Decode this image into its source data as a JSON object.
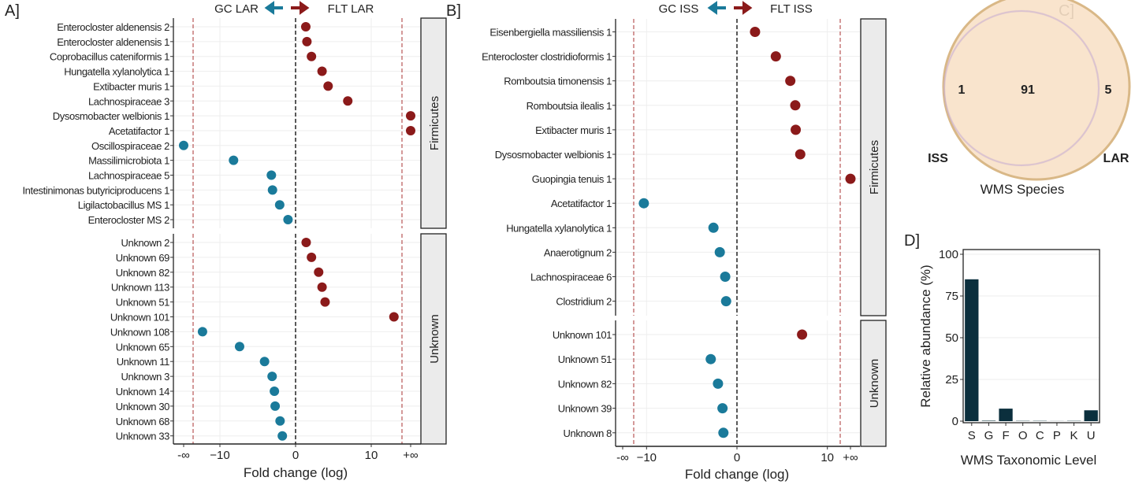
{
  "colors": {
    "flt": "#8b1a1a",
    "gc": "#1a7a9a",
    "bar": "#0b2f3d",
    "venn_lar": "#f8e1c8",
    "venn_lar_stroke": "#d9b887",
    "venn_iss_stroke": "#c9b3d6"
  },
  "chart_data": [
    {
      "panel": "A]",
      "type": "scatter",
      "title_left": "GC LAR",
      "title_right": "FLT LAR",
      "xlabel": "Fold change (log)",
      "x_ticks": [
        "-∞",
        "−10",
        "0",
        "10",
        "+∞"
      ],
      "x_tick_values": [
        "-inf",
        -10,
        0,
        10,
        "+inf"
      ],
      "facets": [
        {
          "name": "Firmicutes",
          "items": [
            [
              "Enterocloster aldenensis 2",
              1.35
            ],
            [
              "Enterocloster aldenensis 1",
              1.5
            ],
            [
              "Coprobacillus cateniformis 1",
              2.1
            ],
            [
              "Hungatella xylanolytica 1",
              3.5
            ],
            [
              "Extibacter muris 1",
              4.3
            ],
            [
              "Lachnospiraceae 3",
              6.9
            ],
            [
              "Dysosmobacter welbionis 1",
              "+inf"
            ],
            [
              "Acetatifactor 1",
              "+inf"
            ],
            [
              "Oscillospiraceae 2",
              "-inf"
            ],
            [
              "Massilimicrobiota 1",
              -8.2
            ],
            [
              "Lachnospiraceae 5",
              -3.2
            ],
            [
              "Intestinimonas butyriciproducens 1",
              -3.05
            ],
            [
              "Ligilactobacillus MS 1",
              -2.1
            ],
            [
              "Enterocloster MS 2",
              -1.0
            ]
          ]
        },
        {
          "name": "Unknown",
          "items": [
            [
              "Unknown 2",
              1.4
            ],
            [
              "Unknown 69",
              2.1
            ],
            [
              "Unknown 82",
              3.05
            ],
            [
              "Unknown 113",
              3.5
            ],
            [
              "Unknown 51",
              3.9
            ],
            [
              "Unknown 101",
              13.0
            ],
            [
              "Unknown 108",
              -12.3
            ],
            [
              "Unknown 65",
              -7.4
            ],
            [
              "Unknown 11",
              -4.1
            ],
            [
              "Unknown 3",
              -3.1
            ],
            [
              "Unknown 14",
              -2.8
            ],
            [
              "Unknown 30",
              -2.7
            ],
            [
              "Unknown 68",
              -2.05
            ],
            [
              "Unknown 33",
              -1.75
            ]
          ]
        }
      ]
    },
    {
      "panel": "B]",
      "type": "scatter",
      "title_left": "GC ISS",
      "title_right": "FLT ISS",
      "xlabel": "Fold change (log)",
      "x_ticks": [
        "-∞",
        "−10",
        "0",
        "10",
        "+∞"
      ],
      "x_tick_values": [
        "-inf",
        -10,
        0,
        10,
        "+inf"
      ],
      "facets": [
        {
          "name": "Firmicutes",
          "items": [
            [
              "Eisenbergiella massiliensis 1",
              2.0
            ],
            [
              "Enterocloster clostridioformis 1",
              4.3
            ],
            [
              "Romboutsia timonensis 1",
              5.9
            ],
            [
              "Romboutsia ilealis 1",
              6.45
            ],
            [
              "Extibacter muris 1",
              6.5
            ],
            [
              "Dysosmobacter welbionis 1",
              7.0
            ],
            [
              "Guopingia tenuis  1",
              "+inf"
            ],
            [
              "Acetatifactor 1",
              -10.3
            ],
            [
              "Hungatella xylanolytica 1",
              -2.6
            ],
            [
              "Anaerotignum 2",
              -1.9
            ],
            [
              "Lachnospiraceae 6",
              -1.3
            ],
            [
              "Clostridium 2",
              -1.2
            ]
          ]
        },
        {
          "name": "Unknown",
          "items": [
            [
              "Unknown 101",
              7.2
            ],
            [
              "Unknown 51",
              -2.9
            ],
            [
              "Unknown 82",
              -2.1
            ],
            [
              "Unknown 39",
              -1.6
            ],
            [
              "Unknown 8",
              -1.5
            ]
          ]
        }
      ]
    },
    {
      "panel": "C]",
      "type": "venn",
      "sets": [
        {
          "name": "ISS",
          "only": 1
        },
        {
          "name": "LAR",
          "only": 5
        }
      ],
      "shared": 91,
      "caption": "WMS Species"
    },
    {
      "panel": "D]",
      "type": "bar",
      "categories": [
        "S",
        "G",
        "F",
        "O",
        "C",
        "P",
        "K",
        "U"
      ],
      "values": [
        85,
        0.5,
        7.5,
        0.3,
        0.3,
        0.1,
        0.3,
        6.5
      ],
      "ylabel": "Relative abundance (%)",
      "xlabel": "WMS Taxonomic Level",
      "ylim": [
        0,
        100
      ],
      "y_ticks": [
        "0",
        "25",
        "50",
        "75",
        "100"
      ],
      "y_tick_values": [
        0,
        25,
        50,
        75,
        100
      ]
    }
  ]
}
